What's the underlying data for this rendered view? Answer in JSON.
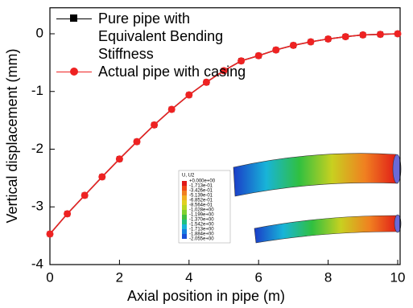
{
  "chart_data": {
    "type": "line",
    "xlabel": "Axial position in pipe (m)",
    "ylabel": "Vertical displacement (mm)",
    "xlim": [
      0,
      10
    ],
    "ylim": [
      -4,
      0.45
    ],
    "xticks": [
      0,
      2,
      4,
      6,
      8,
      10
    ],
    "yticks": [
      -4,
      -3,
      -2,
      -1,
      0
    ],
    "x": [
      0,
      0.5,
      1,
      1.5,
      2,
      2.5,
      3,
      3.5,
      4,
      4.5,
      5,
      5.5,
      6,
      6.5,
      7,
      7.5,
      8,
      8.5,
      9,
      9.5,
      10
    ],
    "series": [
      {
        "name": "Pure pipe with Equivalent Bending Stiffness",
        "color": "#000000",
        "marker": "square",
        "values": [
          -3.47,
          -3.12,
          -2.8,
          -2.48,
          -2.17,
          -1.87,
          -1.58,
          -1.31,
          -1.06,
          -0.84,
          -0.64,
          -0.47,
          -0.38,
          -0.28,
          -0.2,
          -0.14,
          -0.09,
          -0.05,
          -0.02,
          -0.01,
          0
        ]
      },
      {
        "name": "Actual pipe with casing",
        "color": "#ee2222",
        "marker": "circle",
        "values": [
          -3.47,
          -3.12,
          -2.8,
          -2.48,
          -2.17,
          -1.87,
          -1.58,
          -1.31,
          -1.06,
          -0.84,
          -0.64,
          -0.47,
          -0.38,
          -0.28,
          -0.2,
          -0.14,
          -0.09,
          -0.05,
          -0.02,
          -0.01,
          0
        ]
      }
    ],
    "legend": "upper left"
  },
  "inset": {
    "title": "U, U2",
    "labels": [
      "+0.000e+00",
      "-1.713e-01",
      "-3.426e-01",
      "-5.139e-01",
      "-6.852e-01",
      "-8.564e-01",
      "-1.028e+00",
      "-1.199e+00",
      "-1.370e+00",
      "-1.542e+00",
      "-1.713e+00",
      "-1.884e+00",
      "-2.055e+00"
    ]
  }
}
